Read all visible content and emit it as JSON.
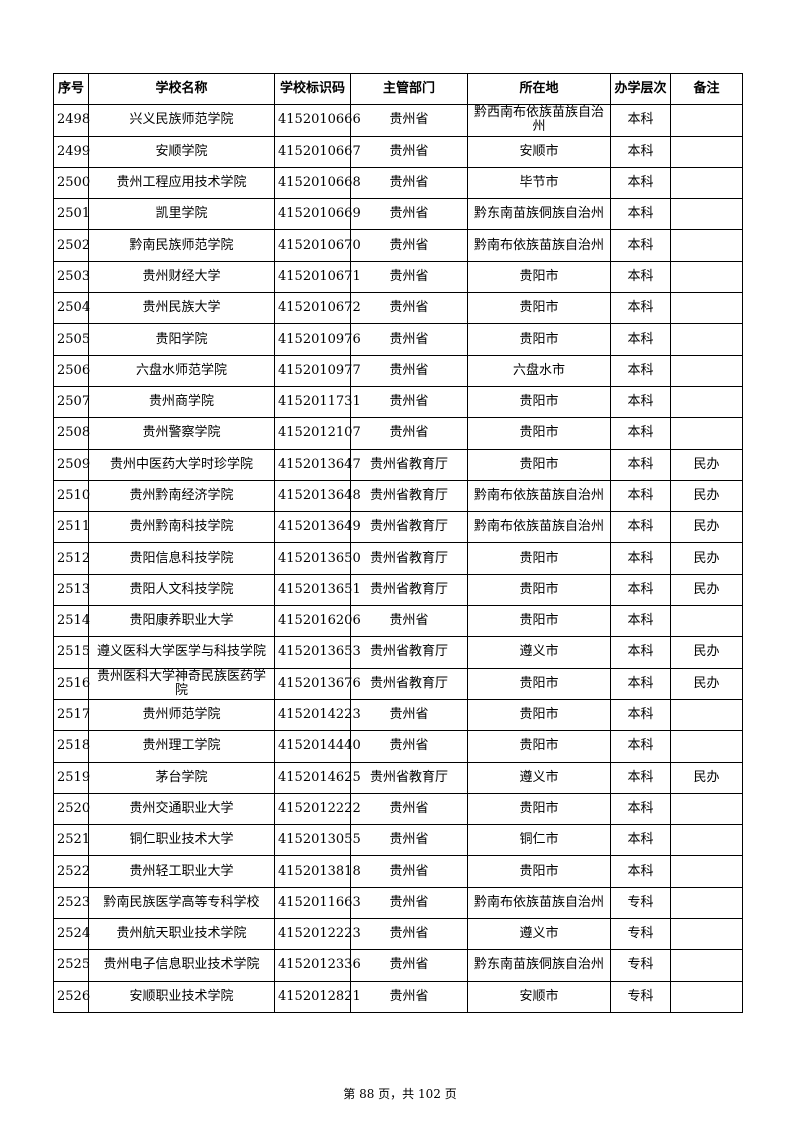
{
  "table": {
    "header": [
      "序号",
      "学校名称",
      "学校标识码",
      "主管部门",
      "所在地",
      "办学层次",
      "备注"
    ],
    "rows": [
      [
        "2498",
        "兴义民族师范学院",
        "4152010666",
        "贵州省",
        "黔西南布依族苗族自治州",
        "本科"
      ],
      [
        "2499",
        "安顺学院",
        "4152010667",
        "贵州省",
        "安顺市",
        "本科"
      ],
      [
        "2500",
        "贵州工程应用技术学院",
        "4152010668",
        "贵州省",
        "毕节市",
        "本科"
      ],
      [
        "2501",
        "凯里学院",
        "4152010669",
        "贵州省",
        "黔东南苗族侗族自治州",
        "本科"
      ],
      [
        "2502",
        "黔南民族师范学院",
        "4152010670",
        "贵州省",
        "黔南布依族苗族自治州",
        "本科"
      ],
      [
        "2503",
        "贵州财经大学",
        "4152010671",
        "贵州省",
        "贵阳市",
        "本科"
      ],
      [
        "2504",
        "贵州民族大学",
        "4152010672",
        "贵州省",
        "贵阳市",
        "本科"
      ],
      [
        "2505",
        "贵阳学院",
        "4152010976",
        "贵州省",
        "贵阳市",
        "本科"
      ],
      [
        "2506",
        "六盘水师范学院",
        "4152010977",
        "贵州省",
        "六盘水市",
        "本科"
      ],
      [
        "2507",
        "贵州商学院",
        "4152011731",
        "贵州省",
        "贵阳市",
        "本科"
      ],
      [
        "2508",
        "贵州警察学院",
        "4152012107",
        "贵州省",
        "贵阳市",
        "本科"
      ],
      [
        "2509",
        "贵州中医药大学时珍学院",
        "4152013647",
        "贵州省教育厅",
        "贵阳市",
        "本科",
        "民办"
      ],
      [
        "2510",
        "贵州黔南经济学院",
        "4152013648",
        "贵州省教育厅",
        "黔南布依族苗族自治州",
        "本科",
        "民办"
      ],
      [
        "2511",
        "贵州黔南科技学院",
        "4152013649",
        "贵州省教育厅",
        "黔南布依族苗族自治州",
        "本科",
        "民办"
      ],
      [
        "2512",
        "贵阳信息科技学院",
        "4152013650",
        "贵州省教育厅",
        "贵阳市",
        "本科",
        "民办"
      ],
      [
        "2513",
        "贵阳人文科技学院",
        "4152013651",
        "贵州省教育厅",
        "贵阳市",
        "本科",
        "民办"
      ],
      [
        "2514",
        "贵阳康养职业大学",
        "4152016206",
        "贵州省",
        "贵阳市",
        "本科"
      ],
      [
        "2515",
        "遵义医科大学医学与科技学院",
        "4152013653",
        "贵州省教育厅",
        "遵义市",
        "本科",
        "民办"
      ],
      [
        "2516",
        "贵州医科大学神奇民族医药学院",
        "4152013676",
        "贵州省教育厅",
        "贵阳市",
        "本科",
        "民办"
      ],
      [
        "2517",
        "贵州师范学院",
        "4152014223",
        "贵州省",
        "贵阳市",
        "本科"
      ],
      [
        "2518",
        "贵州理工学院",
        "4152014440",
        "贵州省",
        "贵阳市",
        "本科"
      ],
      [
        "2519",
        "茅台学院",
        "4152014625",
        "贵州省教育厅",
        "遵义市",
        "本科",
        "民办"
      ],
      [
        "2520",
        "贵州交通职业大学",
        "4152012222",
        "贵州省",
        "贵阳市",
        "本科"
      ],
      [
        "2521",
        "铜仁职业技术大学",
        "4152013055",
        "贵州省",
        "铜仁市",
        "本科"
      ],
      [
        "2522",
        "贵州轻工职业大学",
        "4152013818",
        "贵州省",
        "贵阳市",
        "本科"
      ],
      [
        "2523",
        "黔南民族医学高等专科学校",
        "4152011663",
        "贵州省",
        "黔南布依族苗族自治州",
        "专科"
      ],
      [
        "2524",
        "贵州航天职业技术学院",
        "4152012223",
        "贵州省",
        "遵义市",
        "专科"
      ],
      [
        "2525",
        "贵州电子信息职业技术学院",
        "4152012336",
        "贵州省",
        "黔东南苗族侗族自治州",
        "专科"
      ],
      [
        "2526",
        "安顺职业技术学院",
        "4152012821",
        "贵州省",
        "安顺市",
        "专科"
      ]
    ]
  },
  "footer": "第 88 页，共 102 页"
}
